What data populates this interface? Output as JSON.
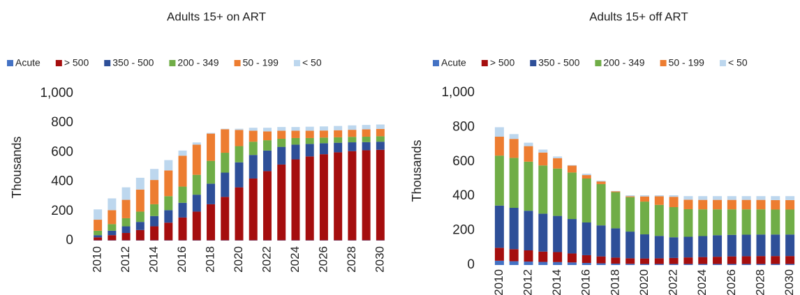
{
  "chart_data": [
    {
      "type": "bar",
      "stacked": true,
      "title": "Adults 15+ on ART",
      "y_label": "Thousands",
      "categories": [
        "2010",
        null,
        "2012",
        null,
        "2014",
        null,
        "2016",
        null,
        "2018",
        null,
        "2020",
        null,
        "2022",
        null,
        "2024",
        null,
        "2026",
        null,
        "2028",
        null,
        "2030"
      ],
      "ylim": [
        0,
        1000
      ],
      "yticks": [
        0,
        200,
        400,
        600,
        800,
        {
          "value": 1000,
          "label": "1,000"
        }
      ],
      "series": [
        {
          "name": "Acute",
          "color": "#4472c4",
          "values": [
            2,
            2,
            2,
            2,
            2,
            2,
            2,
            2,
            2,
            2,
            2,
            2,
            2,
            2,
            2,
            2,
            2,
            2,
            2,
            2,
            2
          ]
        },
        {
          "name": "> 500",
          "color": "#a50e0e",
          "values": [
            20,
            35,
            50,
            70,
            95,
            120,
            155,
            195,
            245,
            295,
            360,
            420,
            470,
            515,
            550,
            570,
            585,
            598,
            606,
            612,
            615
          ]
        },
        {
          "name": "350 - 500",
          "color": "#2e4f98",
          "values": [
            15,
            30,
            45,
            55,
            70,
            85,
            100,
            115,
            140,
            165,
            170,
            160,
            140,
            120,
            100,
            85,
            75,
            65,
            60,
            55,
            55
          ]
        },
        {
          "name": "200 - 349",
          "color": "#70ad47",
          "values": [
            30,
            45,
            55,
            70,
            80,
            95,
            110,
            135,
            155,
            135,
            110,
            90,
            70,
            55,
            45,
            40,
            38,
            37,
            37,
            37,
            37
          ]
        },
        {
          "name": "50 - 199",
          "color": "#ed7d31",
          "values": [
            75,
            95,
            125,
            150,
            165,
            175,
            210,
            205,
            185,
            160,
            110,
            75,
            60,
            55,
            50,
            50,
            48,
            48,
            48,
            50,
            50
          ]
        },
        {
          "name": "< 50",
          "color": "#bdd7ee",
          "values": [
            70,
            80,
            85,
            80,
            75,
            70,
            35,
            15,
            5,
            3,
            8,
            20,
            25,
            25,
            25,
            27,
            28,
            29,
            30,
            30,
            30
          ]
        }
      ]
    },
    {
      "type": "bar",
      "stacked": true,
      "title": "Adults 15+ off ART",
      "y_label": "Thousands",
      "categories": [
        "2010",
        null,
        "2012",
        null,
        "2014",
        null,
        "2016",
        null,
        "2018",
        null,
        "2020",
        null,
        "2022",
        null,
        "2024",
        null,
        "2026",
        null,
        "2028",
        null,
        "2030"
      ],
      "ylim": [
        0,
        1000
      ],
      "yticks": [
        0,
        200,
        400,
        600,
        800,
        {
          "value": 1000,
          "label": "1,000"
        }
      ],
      "series": [
        {
          "name": "Acute",
          "color": "#4472c4",
          "values": [
            25,
            22,
            20,
            18,
            17,
            15,
            12,
            10,
            8,
            7,
            6,
            6,
            6,
            6,
            6,
            6,
            6,
            6,
            6,
            6,
            6
          ]
        },
        {
          "name": "> 500",
          "color": "#a50e0e",
          "values": [
            75,
            70,
            65,
            60,
            58,
            52,
            45,
            40,
            35,
            32,
            32,
            33,
            35,
            38,
            40,
            42,
            44,
            45,
            46,
            46,
            46
          ]
        },
        {
          "name": "350 - 500",
          "color": "#2e4f98",
          "values": [
            245,
            240,
            230,
            220,
            210,
            200,
            190,
            180,
            170,
            155,
            140,
            130,
            120,
            120,
            122,
            125,
            125,
            125,
            125,
            125,
            125
          ]
        },
        {
          "name": "200 - 349",
          "color": "#70ad47",
          "values": [
            290,
            290,
            285,
            280,
            275,
            270,
            255,
            240,
            210,
            200,
            190,
            180,
            175,
            160,
            155,
            150,
            148,
            147,
            146,
            145,
            145
          ]
        },
        {
          "name": "50 - 199",
          "color": "#ed7d31",
          "values": [
            110,
            110,
            90,
            75,
            60,
            40,
            20,
            15,
            5,
            5,
            30,
            50,
            60,
            55,
            55,
            55,
            55,
            55,
            55,
            55,
            55
          ]
        },
        {
          "name": "< 50",
          "color": "#bdd7ee",
          "values": [
            55,
            28,
            20,
            17,
            10,
            3,
            8,
            5,
            2,
            6,
            7,
            6,
            9,
            21,
            22,
            22,
            22,
            22,
            22,
            23,
            23
          ]
        }
      ]
    }
  ]
}
